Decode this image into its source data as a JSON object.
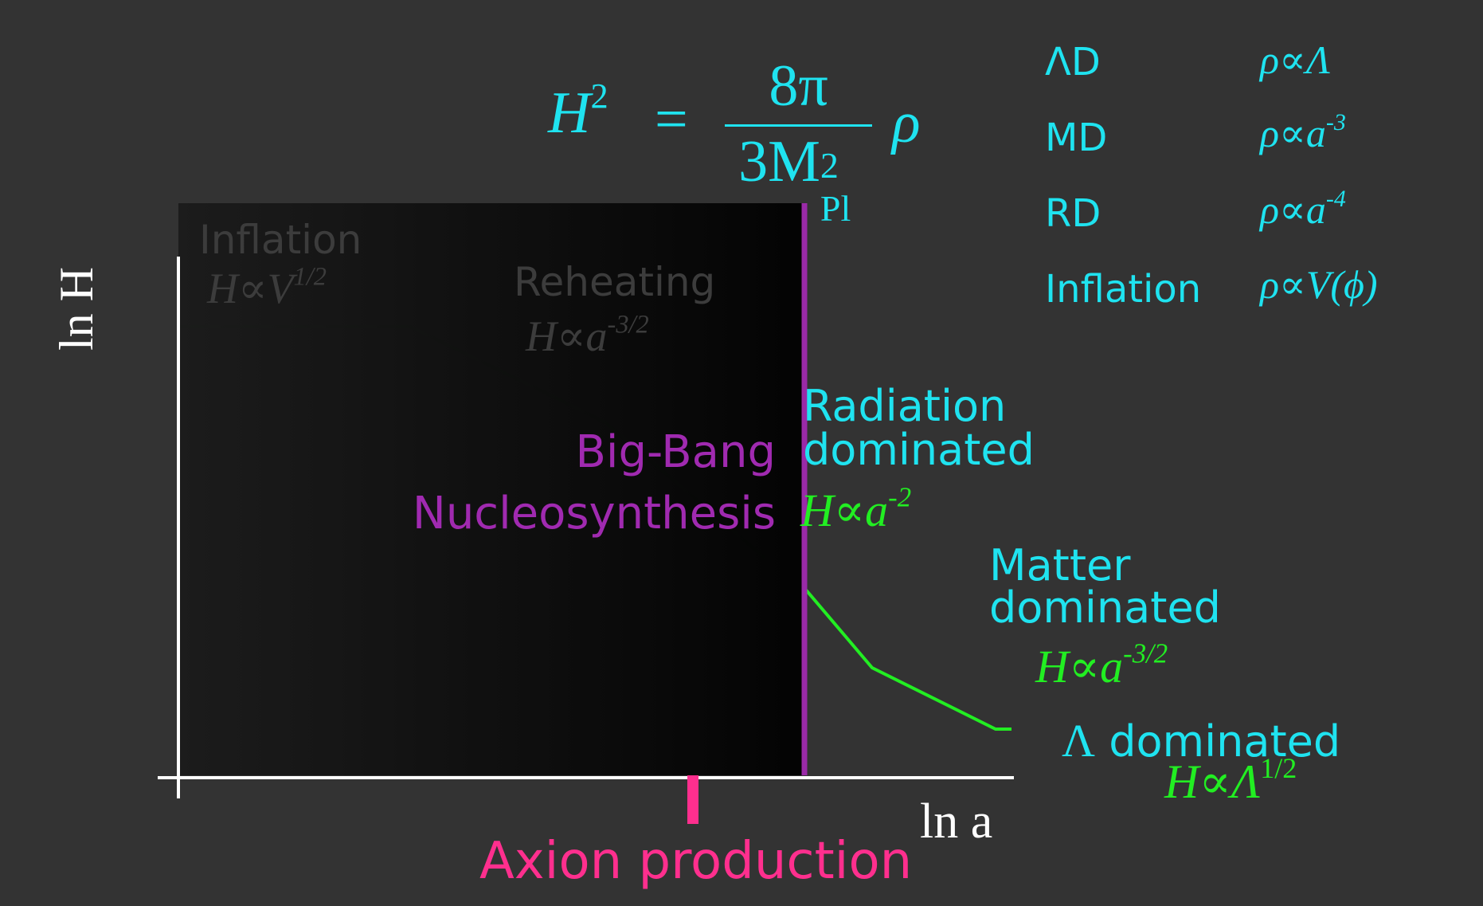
{
  "equation": {
    "lhs": "H",
    "lhs_exp": "2",
    "equals": "=",
    "num": "8π",
    "den": "3M",
    "den_sup": "2",
    "den_sub": "Pl",
    "rho": "ρ"
  },
  "legend": [
    {
      "name": "ΛD",
      "rel": "ρ∝Λ",
      "exp": ""
    },
    {
      "name": "MD",
      "rel": "ρ∝a",
      "exp": "-3"
    },
    {
      "name": "RD",
      "rel": "ρ∝a",
      "exp": "-4"
    },
    {
      "name": "Inflation",
      "rel": "ρ∝V(ϕ)",
      "exp": ""
    }
  ],
  "axes": {
    "y_label": "ln H",
    "x_label": "ln a"
  },
  "regions": {
    "inflation": {
      "title": "Inflation",
      "formula": "H∝V",
      "exp": "1/2"
    },
    "reheating": {
      "title": "Reheating",
      "formula": "H∝a",
      "exp": "-3/2"
    },
    "bbn": {
      "line1": "Big-Bang",
      "line2": "Nucleosynthesis"
    },
    "radiation": {
      "line1": "Radiation",
      "line2": "dominated",
      "formula": "H∝a",
      "exp": "-2"
    },
    "matter": {
      "line1": "Matter",
      "line2": "dominated",
      "formula": "H∝a",
      "exp": "-3/2"
    },
    "lambda": {
      "symbol": "Λ",
      "text": "dominated",
      "formula": "H∝Λ",
      "exp": "1/2"
    }
  },
  "axion": {
    "label": "Axion production"
  },
  "colors": {
    "background": "#333333",
    "cyan": "#1fe3f0",
    "green": "#22ee22",
    "purple": "#a02ab0",
    "pink": "#ff2f8e",
    "axes": "#ffffff"
  }
}
